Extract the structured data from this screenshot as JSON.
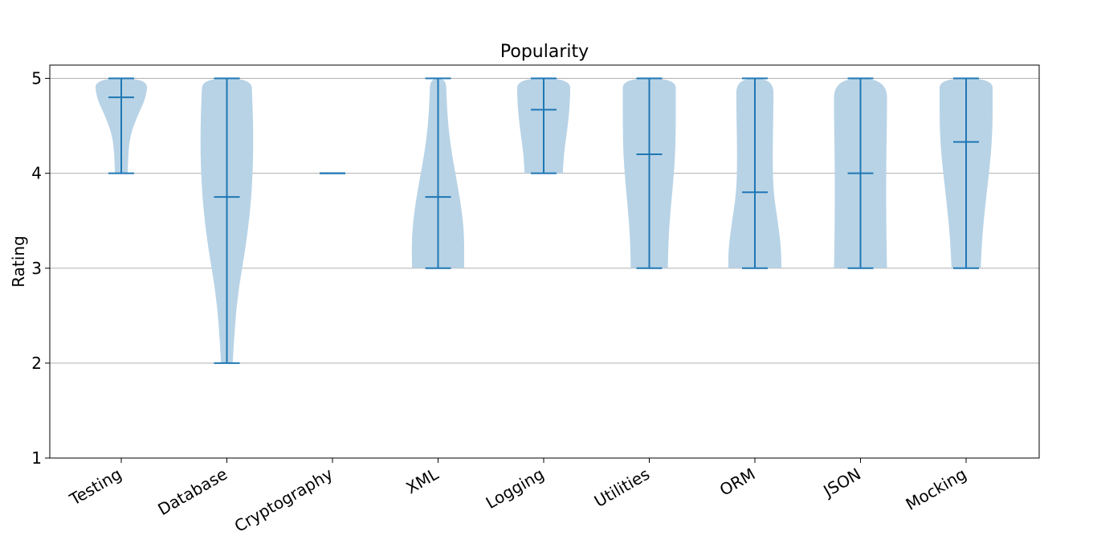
{
  "chart_data": {
    "type": "violin",
    "title": "Popularity",
    "xlabel": "",
    "ylabel": "Rating",
    "ylim": [
      1,
      5.14
    ],
    "yticks": [
      "1",
      "2",
      "3",
      "4",
      "5"
    ],
    "grid": "horizontal",
    "categories": [
      "Testing",
      "Database",
      "Cryptography",
      "XML",
      "Logging",
      "Utilities",
      "ORM",
      "JSON",
      "Mocking"
    ],
    "violins": [
      {
        "name": "Testing",
        "min": 4,
        "max": 5,
        "mean": 4.8,
        "density": [
          [
            4.0,
            0.24
          ],
          [
            4.2,
            0.26
          ],
          [
            4.4,
            0.34
          ],
          [
            4.6,
            0.6
          ],
          [
            4.8,
            0.94
          ],
          [
            5.0,
            1.0
          ]
        ]
      },
      {
        "name": "Database",
        "min": 2,
        "max": 5,
        "mean": 3.75,
        "density": [
          [
            2.0,
            0.22
          ],
          [
            2.4,
            0.3
          ],
          [
            2.8,
            0.45
          ],
          [
            3.2,
            0.7
          ],
          [
            3.6,
            0.88
          ],
          [
            4.0,
            0.98
          ],
          [
            4.4,
            1.0
          ],
          [
            4.8,
            0.96
          ],
          [
            5.0,
            0.92
          ]
        ]
      },
      {
        "name": "Cryptography",
        "min": 4,
        "max": 4,
        "mean": 4,
        "density": []
      },
      {
        "name": "XML",
        "min": 3,
        "max": 5,
        "mean": 3.75,
        "density": [
          [
            3.0,
            0.98
          ],
          [
            3.3,
            1.0
          ],
          [
            3.6,
            0.9
          ],
          [
            3.9,
            0.72
          ],
          [
            4.2,
            0.52
          ],
          [
            4.5,
            0.38
          ],
          [
            4.8,
            0.32
          ],
          [
            5.0,
            0.3
          ]
        ]
      },
      {
        "name": "Logging",
        "min": 4,
        "max": 5,
        "mean": 4.67,
        "density": [
          [
            4.0,
            0.72
          ],
          [
            4.2,
            0.76
          ],
          [
            4.4,
            0.86
          ],
          [
            4.6,
            0.95
          ],
          [
            4.8,
            1.0
          ],
          [
            5.0,
            1.0
          ]
        ]
      },
      {
        "name": "Utilities",
        "min": 3,
        "max": 5,
        "mean": 4.2,
        "density": [
          [
            3.0,
            0.7
          ],
          [
            3.3,
            0.72
          ],
          [
            3.6,
            0.8
          ],
          [
            3.9,
            0.9
          ],
          [
            4.2,
            0.98
          ],
          [
            4.5,
            1.0
          ],
          [
            4.8,
            1.0
          ],
          [
            5.0,
            1.0
          ]
        ]
      },
      {
        "name": "ORM",
        "min": 3,
        "max": 5,
        "mean": 3.8,
        "density": [
          [
            3.0,
            1.0
          ],
          [
            3.2,
            1.0
          ],
          [
            3.5,
            0.86
          ],
          [
            3.8,
            0.7
          ],
          [
            4.1,
            0.67
          ],
          [
            4.4,
            0.68
          ],
          [
            4.7,
            0.7
          ],
          [
            5.0,
            0.7
          ]
        ]
      },
      {
        "name": "JSON",
        "min": 3,
        "max": 5,
        "mean": 4,
        "density": [
          [
            3.0,
            1.0
          ],
          [
            3.3,
            0.98
          ],
          [
            3.6,
            0.97
          ],
          [
            4.0,
            0.97
          ],
          [
            4.3,
            0.98
          ],
          [
            4.6,
            1.0
          ],
          [
            5.0,
            1.0
          ]
        ]
      },
      {
        "name": "Mocking",
        "min": 3,
        "max": 5,
        "mean": 4.33,
        "density": [
          [
            3.0,
            0.55
          ],
          [
            3.3,
            0.6
          ],
          [
            3.6,
            0.7
          ],
          [
            3.9,
            0.82
          ],
          [
            4.2,
            0.94
          ],
          [
            4.5,
            1.0
          ],
          [
            4.8,
            1.0
          ],
          [
            5.0,
            1.0
          ]
        ]
      }
    ],
    "colors": {
      "body": "#b8d3e6",
      "line": "#1f77b4",
      "grid": "#b0b0b0",
      "axes": "#000000"
    }
  }
}
